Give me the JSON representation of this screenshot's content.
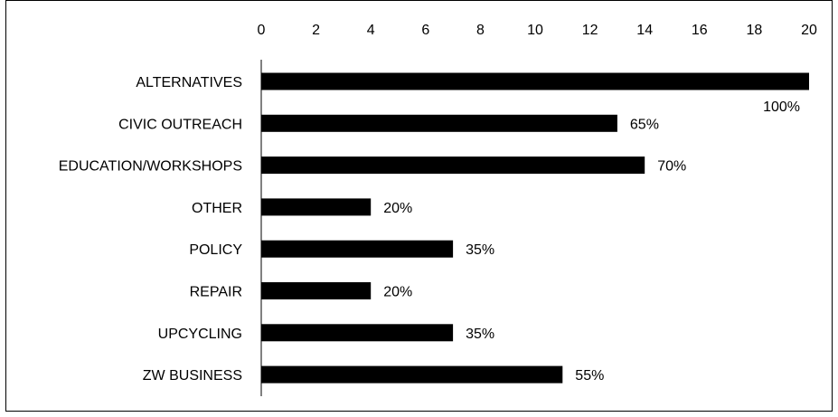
{
  "chart_data": {
    "type": "bar",
    "orientation": "horizontal",
    "title": "",
    "xlabel": "",
    "ylabel": "",
    "xlim": [
      0,
      20
    ],
    "x_ticks": [
      "0",
      "2",
      "4",
      "6",
      "8",
      "10",
      "12",
      "14",
      "16",
      "18",
      "20"
    ],
    "x_axis_position": "top",
    "grid": false,
    "legend": "none",
    "bar_color": "#000000",
    "categories": [
      "ALTERNATIVES",
      "CIVIC OUTREACH",
      "EDUCATION/WORKSHOPS",
      "OTHER",
      "POLICY",
      "REPAIR",
      "UPCYCLING",
      "ZW BUSINESS"
    ],
    "values": [
      20,
      13,
      14,
      4,
      7,
      4,
      7,
      11
    ],
    "data_labels": [
      "100%",
      "65%",
      "70%",
      "20%",
      "35%",
      "20%",
      "35%",
      "55%"
    ]
  }
}
